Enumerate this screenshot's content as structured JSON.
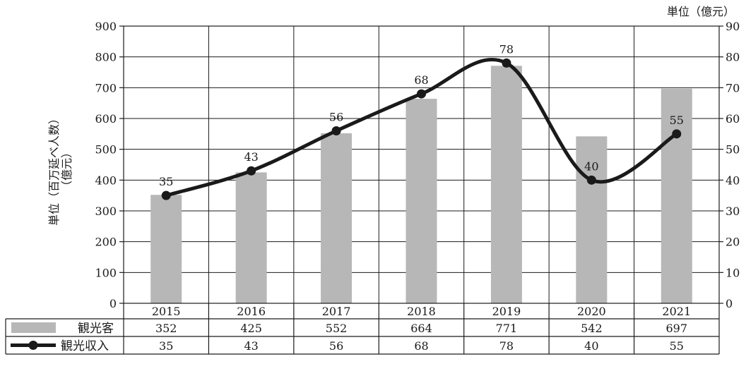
{
  "chart_data": {
    "type": "bar+line",
    "categories": [
      "2015",
      "2016",
      "2017",
      "2018",
      "2019",
      "2020",
      "2021"
    ],
    "series": [
      {
        "name": "観光客",
        "type": "bar",
        "axis": "left",
        "values": [
          352,
          425,
          552,
          664,
          771,
          542,
          697
        ],
        "color": "#b7b7b7"
      },
      {
        "name": "観光収入",
        "type": "line",
        "axis": "right",
        "values": [
          35,
          43,
          56,
          68,
          78,
          40,
          55
        ],
        "color": "#1a1a1a"
      }
    ],
    "left_axis": {
      "title_line1": "単位（百万延べ人数）",
      "title_line2": "（億元）",
      "ylim": [
        0,
        900
      ],
      "ticks": [
        "0",
        "100",
        "200",
        "300",
        "400",
        "500",
        "600",
        "700",
        "800",
        "900"
      ]
    },
    "right_axis": {
      "unit": "単位（億元）",
      "ylim": [
        0,
        90
      ],
      "ticks": [
        "0",
        "10",
        "20",
        "30",
        "40",
        "50",
        "60",
        "70",
        "80",
        "90"
      ]
    },
    "grid": true,
    "legend_placement": "table-left",
    "data_table": true
  }
}
